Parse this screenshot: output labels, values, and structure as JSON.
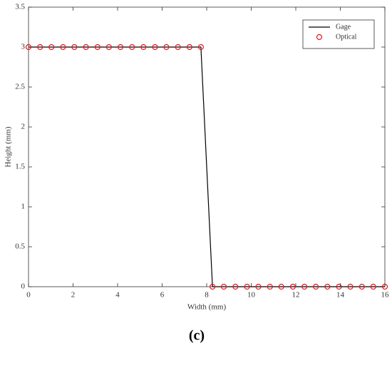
{
  "chart_data": {
    "type": "line",
    "xlabel": "Width (mm)",
    "ylabel": "Height (mm)",
    "caption": "(c)",
    "xlim": [
      0,
      16
    ],
    "ylim": [
      0,
      3.5
    ],
    "xticks": [
      0,
      2,
      4,
      6,
      8,
      10,
      12,
      14,
      16
    ],
    "yticks": [
      0,
      0.5,
      1,
      1.5,
      2,
      2.5,
      3,
      3.5
    ],
    "grid": false,
    "legend": "upper right",
    "series": [
      {
        "name": "Gage",
        "type": "line",
        "color": "#000000",
        "x": [
          0,
          7.74,
          8.26,
          16
        ],
        "values": [
          3,
          3,
          0,
          0
        ]
      },
      {
        "name": "Optical",
        "type": "scatter",
        "color": "#e8181b",
        "x": [
          0,
          0.52,
          1.03,
          1.55,
          2.06,
          2.58,
          3.1,
          3.61,
          4.13,
          4.65,
          5.16,
          5.68,
          6.19,
          6.71,
          7.23,
          7.74,
          8.26,
          8.77,
          9.29,
          9.81,
          10.32,
          10.84,
          11.35,
          11.87,
          12.39,
          12.9,
          13.42,
          13.94,
          14.45,
          14.97,
          15.48,
          16
        ],
        "values": [
          3,
          3,
          3,
          3,
          3,
          3,
          3,
          3,
          3,
          3,
          3,
          3,
          3,
          3,
          3,
          3,
          0,
          0,
          0,
          0,
          0,
          0,
          0,
          0,
          0,
          0,
          0,
          0,
          0,
          0,
          0,
          0
        ]
      }
    ]
  }
}
